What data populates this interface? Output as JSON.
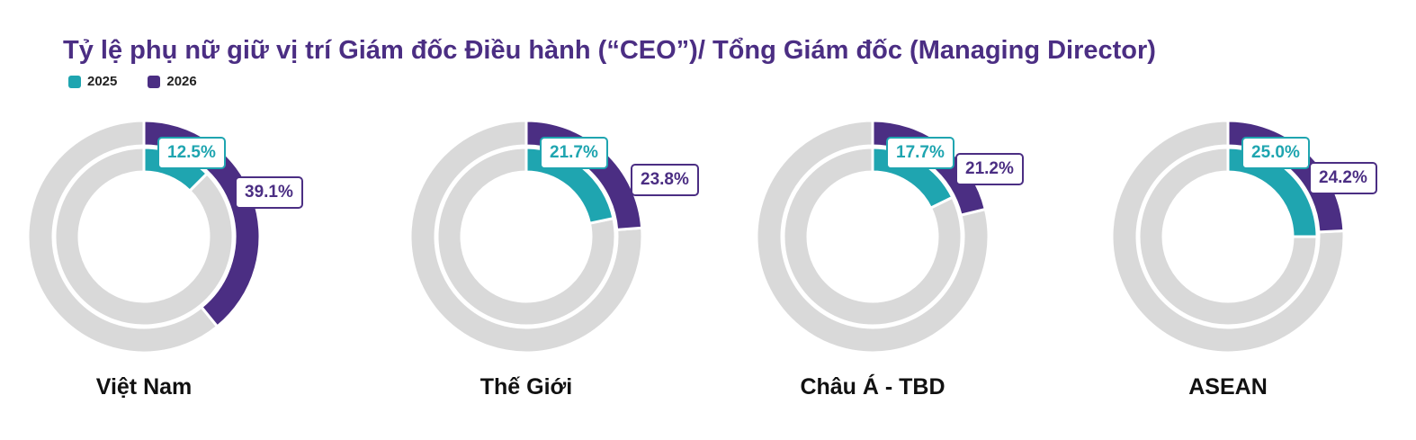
{
  "chart_data": {
    "type": "pie",
    "variant": "nested-donut",
    "title": "Tỷ lệ phụ nữ giữ vị trí Giám đốc Điều hành (“CEO”)/ Tổng Giám đốc (Managing Director)",
    "legend": [
      {
        "name": "2025",
        "color": "#1fa5b0"
      },
      {
        "name": "2026",
        "color": "#4b2e83"
      }
    ],
    "legend_position": "top-left",
    "remainder_color": "#d9d9d9",
    "panels": [
      {
        "category": "Việt Nam",
        "v2025": 12.5,
        "v2026": 39.1,
        "label2025": "12.5%",
        "label2026": "39.1%"
      },
      {
        "category": "Thế Giới",
        "v2025": 21.7,
        "v2026": 23.8,
        "label2025": "21.7%",
        "label2026": "23.8%"
      },
      {
        "category": "Châu Á - TBD",
        "v2025": 17.7,
        "v2026": 21.2,
        "label2025": "17.7%",
        "label2026": "21.2%"
      },
      {
        "category": "ASEAN",
        "v2025": 25.0,
        "v2026": 24.2,
        "label2025": "25.0%",
        "label2026": "24.2%"
      }
    ]
  }
}
